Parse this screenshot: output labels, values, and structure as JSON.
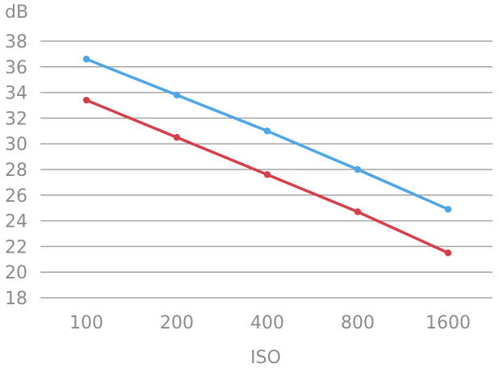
{
  "chart_data": {
    "type": "line",
    "title": "",
    "xlabel": "ISO",
    "ylabel": "dB",
    "categories": [
      "100",
      "200",
      "400",
      "800",
      "1600"
    ],
    "ylim": [
      18,
      38
    ],
    "yticks": [
      "18",
      "20",
      "22",
      "24",
      "26",
      "28",
      "30",
      "32",
      "34",
      "36",
      "38"
    ],
    "grid": true,
    "series": [
      {
        "color": "#4da6e8",
        "values": [
          36.6,
          33.8,
          31.0,
          28.0,
          24.9
        ]
      },
      {
        "color": "#d63e4a",
        "values": [
          33.4,
          30.5,
          27.6,
          24.7,
          21.5
        ]
      }
    ]
  }
}
